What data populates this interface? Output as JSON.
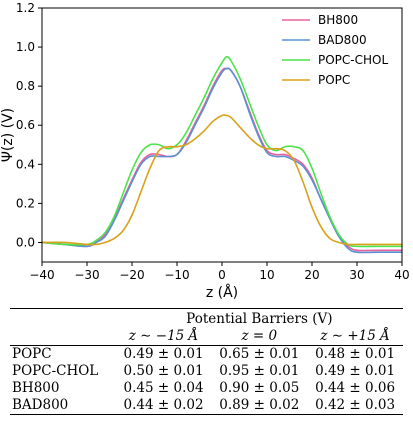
{
  "chart_data": {
    "type": "line",
    "xlabel": "z (Å)",
    "ylabel": "Ψ(z) (V)",
    "xlim": [
      -40,
      40
    ],
    "ylim": [
      -0.1,
      1.2
    ],
    "x_ticks": [
      "−40",
      "−30",
      "−20",
      "−10",
      "0",
      "10",
      "20",
      "30",
      "40"
    ],
    "y_ticks": [
      "0.0",
      "0.2",
      "0.4",
      "0.6",
      "0.8",
      "1.0",
      "1.2"
    ],
    "x_tick_values": [
      -40,
      -30,
      -20,
      -10,
      0,
      10,
      20,
      30,
      40
    ],
    "y_tick_values": [
      0.0,
      0.2,
      0.4,
      0.6,
      0.8,
      1.0,
      1.2
    ],
    "grid": false,
    "legend_position": "top-right",
    "x": [
      -40,
      -35,
      -30,
      -28,
      -26,
      -24,
      -22,
      -20,
      -18,
      -16,
      -14,
      -12,
      -10,
      -8,
      -6,
      -4,
      -2,
      0,
      1,
      2,
      4,
      6,
      8,
      10,
      12,
      14,
      16,
      18,
      20,
      22,
      24,
      26,
      28,
      30,
      35,
      40
    ],
    "series": [
      {
        "name": "BH800",
        "color": "#e8619c",
        "values": [
          0.0,
          -0.01,
          -0.02,
          0.0,
          0.04,
          0.12,
          0.22,
          0.32,
          0.41,
          0.45,
          0.45,
          0.44,
          0.45,
          0.52,
          0.61,
          0.7,
          0.8,
          0.88,
          0.89,
          0.88,
          0.8,
          0.68,
          0.56,
          0.47,
          0.45,
          0.45,
          0.43,
          0.4,
          0.33,
          0.22,
          0.12,
          0.03,
          -0.02,
          -0.04,
          -0.04,
          -0.04
        ]
      },
      {
        "name": "BAD800",
        "color": "#5a92d1",
        "values": [
          0.0,
          -0.01,
          -0.02,
          0.0,
          0.03,
          0.11,
          0.21,
          0.31,
          0.4,
          0.44,
          0.44,
          0.44,
          0.45,
          0.51,
          0.6,
          0.69,
          0.79,
          0.87,
          0.89,
          0.88,
          0.8,
          0.67,
          0.55,
          0.46,
          0.44,
          0.44,
          0.42,
          0.39,
          0.32,
          0.22,
          0.12,
          0.03,
          -0.03,
          -0.05,
          -0.05,
          -0.05
        ]
      },
      {
        "name": "POPC-CHOL",
        "color": "#4be34b",
        "values": [
          0.0,
          -0.01,
          -0.01,
          0.01,
          0.05,
          0.13,
          0.25,
          0.37,
          0.46,
          0.5,
          0.5,
          0.48,
          0.5,
          0.56,
          0.65,
          0.74,
          0.84,
          0.92,
          0.95,
          0.93,
          0.84,
          0.72,
          0.6,
          0.5,
          0.47,
          0.49,
          0.49,
          0.47,
          0.38,
          0.25,
          0.13,
          0.04,
          -0.01,
          -0.02,
          -0.02,
          -0.02
        ]
      },
      {
        "name": "POPC",
        "color": "#d9a11a",
        "values": [
          0.0,
          0.0,
          -0.01,
          -0.01,
          0.0,
          0.02,
          0.06,
          0.14,
          0.26,
          0.38,
          0.47,
          0.49,
          0.49,
          0.5,
          0.53,
          0.57,
          0.62,
          0.65,
          0.65,
          0.64,
          0.59,
          0.54,
          0.5,
          0.48,
          0.48,
          0.47,
          0.42,
          0.31,
          0.18,
          0.08,
          0.02,
          0.0,
          -0.01,
          -0.01,
          -0.01,
          -0.01
        ]
      }
    ]
  },
  "table": {
    "caption": "Potential Barriers (V)",
    "columns": [
      "z ∼ −15 Å",
      "z = 0",
      "z ∼ +15 Å"
    ],
    "rows": [
      {
        "name": "POPC",
        "values": [
          "0.49 ± 0.01",
          "0.65 ± 0.01",
          "0.48 ± 0.01"
        ]
      },
      {
        "name": "POPC-CHOL",
        "values": [
          "0.50 ± 0.01",
          "0.95 ± 0.01",
          "0.49 ± 0.01"
        ]
      },
      {
        "name": "BH800",
        "values": [
          "0.45 ± 0.04",
          "0.90 ± 0.05",
          "0.44 ± 0.06"
        ]
      },
      {
        "name": "BAD800",
        "values": [
          "0.44 ± 0.02",
          "0.89 ± 0.02",
          "0.42 ± 0.03"
        ]
      }
    ]
  }
}
